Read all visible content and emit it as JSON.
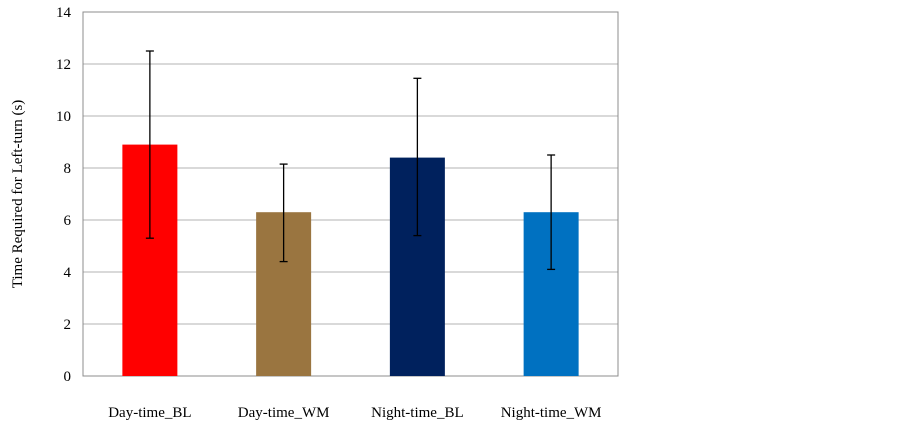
{
  "chart_data": {
    "type": "bar",
    "title": "",
    "xlabel": "",
    "ylabel": "Time Required for Left-turn (s)",
    "ylim": [
      0,
      14
    ],
    "yticks": [
      0,
      2,
      4,
      6,
      8,
      10,
      12,
      14
    ],
    "grid": true,
    "legend": "none",
    "categories": [
      "Day-time_BL",
      "Day-time_WM",
      "Night-time_BL",
      "Night-time_WM"
    ],
    "values": [
      8.9,
      6.3,
      8.4,
      6.3
    ],
    "error_bars": [
      {
        "low": 5.3,
        "high": 12.5
      },
      {
        "low": 4.4,
        "high": 8.15
      },
      {
        "low": 5.4,
        "high": 11.45
      },
      {
        "low": 4.1,
        "high": 8.5
      }
    ],
    "colors": [
      "#ff0000",
      "#9a7540",
      "#00215d",
      "#0071c1"
    ]
  }
}
